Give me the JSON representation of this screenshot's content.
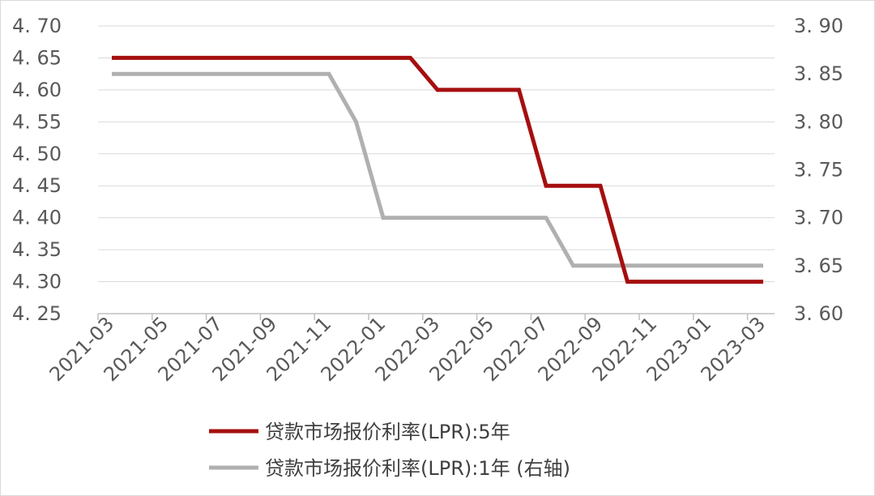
{
  "chart_data": {
    "type": "line",
    "x": [
      "2021-03",
      "2021-04",
      "2021-05",
      "2021-06",
      "2021-07",
      "2021-08",
      "2021-09",
      "2021-10",
      "2021-11",
      "2021-12",
      "2022-01",
      "2022-02",
      "2022-03",
      "2022-04",
      "2022-05",
      "2022-06",
      "2022-07",
      "2022-08",
      "2022-09",
      "2022-10",
      "2022-11",
      "2022-12",
      "2023-01",
      "2023-02",
      "2023-03"
    ],
    "x_tick_labels": [
      "2021-03",
      "2021-05",
      "2021-07",
      "2021-09",
      "2021-11",
      "2022-01",
      "2022-03",
      "2022-05",
      "2022-07",
      "2022-09",
      "2022-11",
      "2023-01",
      "2023-03"
    ],
    "series": [
      {
        "name": "贷款市场报价利率(LPR):5年",
        "axis": "left",
        "color": "#a50f0f",
        "values": [
          4.65,
          4.65,
          4.65,
          4.65,
          4.65,
          4.65,
          4.65,
          4.65,
          4.65,
          4.65,
          4.65,
          4.65,
          4.6,
          4.6,
          4.6,
          4.6,
          4.45,
          4.45,
          4.45,
          4.3,
          4.3,
          4.3,
          4.3,
          4.3,
          4.3
        ]
      },
      {
        "name": "贷款市场报价利率(LPR):1年（右轴)",
        "axis": "right",
        "color": "#b0b0b0",
        "values": [
          3.85,
          3.85,
          3.85,
          3.85,
          3.85,
          3.85,
          3.85,
          3.85,
          3.85,
          3.8,
          3.7,
          3.7,
          3.7,
          3.7,
          3.7,
          3.7,
          3.7,
          3.65,
          3.65,
          3.65,
          3.65,
          3.65,
          3.65,
          3.65,
          3.65
        ]
      }
    ],
    "y_left": {
      "range": [
        4.25,
        4.7
      ],
      "ticks": [
        "4.70",
        "4.65",
        "4.60",
        "4.55",
        "4.50",
        "4.45",
        "4.40",
        "4.35",
        "4.30",
        "4.25"
      ]
    },
    "y_right": {
      "range": [
        3.6,
        3.9
      ],
      "ticks": [
        "3.90",
        "3.85",
        "3.80",
        "3.75",
        "3.70",
        "3.65",
        "3.60"
      ]
    },
    "grid": "horizontal",
    "legend_placement": "bottom"
  },
  "legend": {
    "items": [
      {
        "label": "贷款市场报价利率(LPR):5年",
        "color": "#a50f0f"
      },
      {
        "label": "贷款市场报价利率(LPR):1年 (右轴)",
        "color": "#b0b0b0"
      }
    ]
  }
}
